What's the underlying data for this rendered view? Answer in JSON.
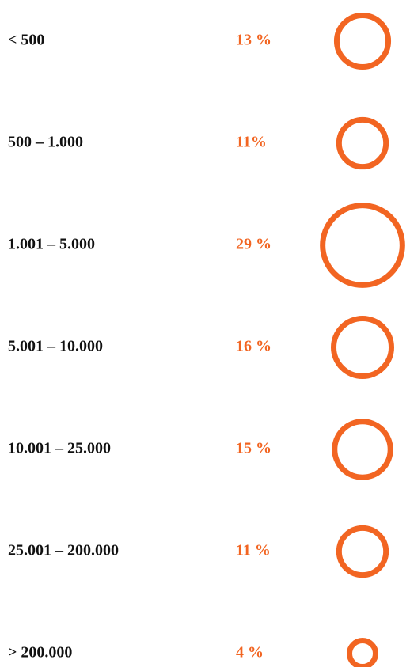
{
  "chart_data": {
    "type": "bubble",
    "categories": [
      "< 500",
      "500 – 1.000",
      "1.001 – 5.000",
      "5.001 – 10.000",
      "10.001 – 25.000",
      "25.001 – 200.000",
      "> 200.000"
    ],
    "values": [
      13,
      11,
      29,
      16,
      15,
      11,
      4
    ],
    "value_labels": [
      "13 %",
      "11%",
      "29 %",
      "16 %",
      "15 %",
      "11 %",
      "4 %"
    ],
    "color": "#f26522"
  }
}
